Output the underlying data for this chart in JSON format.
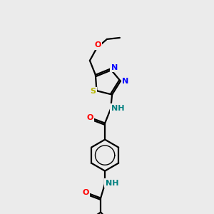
{
  "bg_color": "#ebebeb",
  "bond_color": "#000000",
  "atom_colors": {
    "O": "#ff0000",
    "N": "#0000ff",
    "S": "#b8b800",
    "NH_amide": "#008080",
    "C": "#000000"
  },
  "figsize": [
    3.0,
    3.0
  ],
  "dpi": 100
}
